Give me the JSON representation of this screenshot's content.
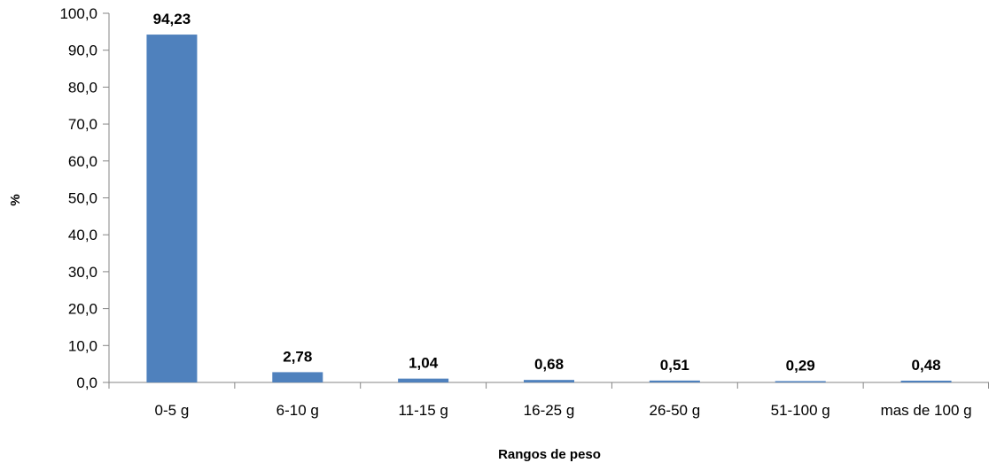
{
  "chart_data": {
    "type": "bar",
    "categories": [
      "0-5 g",
      "6-10 g",
      "11-15 g",
      "16-25 g",
      "26-50 g",
      "51-100 g",
      "mas de 100 g"
    ],
    "values": [
      94.23,
      2.78,
      1.04,
      0.68,
      0.51,
      0.29,
      0.48
    ],
    "data_labels": [
      "94,23",
      "2,78",
      "1,04",
      "0,68",
      "0,51",
      "0,29",
      "0,48"
    ],
    "y_ticks": [
      "0,0",
      "10,0",
      "20,0",
      "30,0",
      "40,0",
      "50,0",
      "60,0",
      "70,0",
      "80,0",
      "90,0",
      "100,0"
    ],
    "xlabel": "Rangos de peso",
    "ylabel": "%",
    "ylim": [
      0,
      100
    ],
    "grid": false,
    "legend": "none",
    "bar_color": "#4F81BD"
  }
}
